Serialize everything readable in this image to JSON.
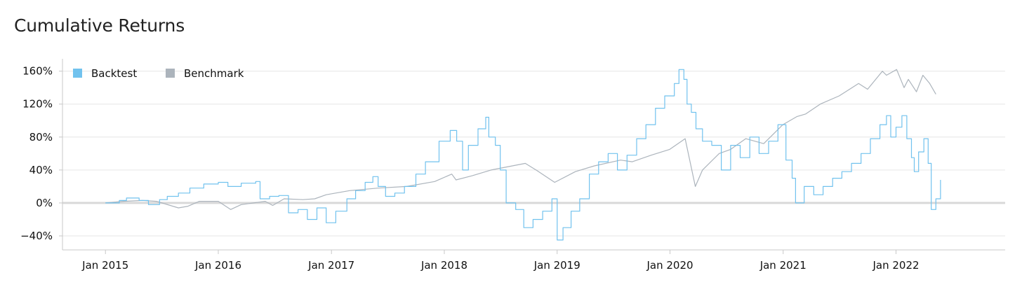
{
  "title": "Cumulative Returns",
  "colors": {
    "backtest": "#71c2ee",
    "benchmark": "#acb4bc",
    "grid": "#e6e6e6",
    "axis": "#c8c8c8",
    "zero": "#d9d9d9"
  },
  "chart_data": {
    "type": "line",
    "title": "Cumulative Returns",
    "xlabel": "",
    "ylabel": "",
    "x_ticks": [
      "Jan 2015",
      "Jan 2016",
      "Jan 2017",
      "Jan 2018",
      "Jan 2019",
      "Jan 2020",
      "Jan 2021",
      "Jan 2022"
    ],
    "y_ticks": [
      "160%",
      "120%",
      "80%",
      "40%",
      "0%",
      "−40%"
    ],
    "y_tick_values": [
      160,
      120,
      80,
      40,
      0,
      -40
    ],
    "xlim": [
      "2014-08-15",
      "2022-12-20"
    ],
    "ylim": [
      -57,
      175
    ],
    "grid": true,
    "legend": "top-left",
    "series": [
      {
        "name": "Backtest",
        "color": "#71c2ee",
        "step": true,
        "points": [
          [
            "2015-01-01",
            0
          ],
          [
            "2015-02-15",
            3
          ],
          [
            "2015-03-10",
            6
          ],
          [
            "2015-04-20",
            3
          ],
          [
            "2015-05-20",
            -2
          ],
          [
            "2015-06-25",
            4
          ],
          [
            "2015-07-20",
            8
          ],
          [
            "2015-08-25",
            12
          ],
          [
            "2015-10-01",
            18
          ],
          [
            "2015-11-15",
            23
          ],
          [
            "2016-01-01",
            25
          ],
          [
            "2016-02-01",
            20
          ],
          [
            "2016-03-15",
            24
          ],
          [
            "2016-05-01",
            26
          ],
          [
            "2016-05-15",
            5
          ],
          [
            "2016-06-15",
            8
          ],
          [
            "2016-07-15",
            9
          ],
          [
            "2016-08-15",
            -12
          ],
          [
            "2016-09-15",
            -8
          ],
          [
            "2016-10-15",
            -20
          ],
          [
            "2016-11-15",
            -6
          ],
          [
            "2016-12-15",
            -24
          ],
          [
            "2017-01-15",
            -10
          ],
          [
            "2017-02-20",
            5
          ],
          [
            "2017-03-20",
            15
          ],
          [
            "2017-04-20",
            25
          ],
          [
            "2017-05-15",
            32
          ],
          [
            "2017-06-01",
            20
          ],
          [
            "2017-06-25",
            8
          ],
          [
            "2017-07-25",
            12
          ],
          [
            "2017-08-25",
            20
          ],
          [
            "2017-10-01",
            35
          ],
          [
            "2017-11-01",
            50
          ],
          [
            "2017-12-15",
            75
          ],
          [
            "2018-01-20",
            88
          ],
          [
            "2018-02-10",
            75
          ],
          [
            "2018-03-01",
            40
          ],
          [
            "2018-03-20",
            70
          ],
          [
            "2018-04-20",
            90
          ],
          [
            "2018-05-15",
            104
          ],
          [
            "2018-05-25",
            80
          ],
          [
            "2018-06-15",
            70
          ],
          [
            "2018-07-01",
            40
          ],
          [
            "2018-07-20",
            0
          ],
          [
            "2018-08-20",
            -8
          ],
          [
            "2018-09-15",
            -30
          ],
          [
            "2018-10-15",
            -20
          ],
          [
            "2018-11-15",
            -10
          ],
          [
            "2018-12-15",
            5
          ],
          [
            "2019-01-01",
            -45
          ],
          [
            "2019-01-20",
            -30
          ],
          [
            "2019-02-15",
            -10
          ],
          [
            "2019-03-15",
            5
          ],
          [
            "2019-04-15",
            35
          ],
          [
            "2019-05-15",
            50
          ],
          [
            "2019-06-15",
            60
          ],
          [
            "2019-07-15",
            40
          ],
          [
            "2019-08-15",
            58
          ],
          [
            "2019-09-15",
            78
          ],
          [
            "2019-10-15",
            95
          ],
          [
            "2019-11-15",
            115
          ],
          [
            "2019-12-15",
            130
          ],
          [
            "2020-01-15",
            145
          ],
          [
            "2020-01-30",
            162
          ],
          [
            "2020-02-15",
            150
          ],
          [
            "2020-02-25",
            120
          ],
          [
            "2020-03-10",
            110
          ],
          [
            "2020-03-25",
            90
          ],
          [
            "2020-04-15",
            75
          ],
          [
            "2020-05-15",
            70
          ],
          [
            "2020-06-15",
            40
          ],
          [
            "2020-07-15",
            70
          ],
          [
            "2020-08-15",
            55
          ],
          [
            "2020-09-15",
            80
          ],
          [
            "2020-10-15",
            60
          ],
          [
            "2020-11-15",
            75
          ],
          [
            "2020-12-15",
            95
          ],
          [
            "2021-01-10",
            52
          ],
          [
            "2021-01-30",
            30
          ],
          [
            "2021-02-10",
            0
          ],
          [
            "2021-03-10",
            20
          ],
          [
            "2021-04-10",
            10
          ],
          [
            "2021-05-10",
            20
          ],
          [
            "2021-06-10",
            30
          ],
          [
            "2021-07-10",
            38
          ],
          [
            "2021-08-10",
            48
          ],
          [
            "2021-09-10",
            60
          ],
          [
            "2021-10-10",
            78
          ],
          [
            "2021-11-10",
            95
          ],
          [
            "2021-12-01",
            106
          ],
          [
            "2021-12-15",
            80
          ],
          [
            "2022-01-01",
            92
          ],
          [
            "2022-01-20",
            106
          ],
          [
            "2022-02-05",
            78
          ],
          [
            "2022-02-20",
            55
          ],
          [
            "2022-03-01",
            38
          ],
          [
            "2022-03-15",
            62
          ],
          [
            "2022-04-01",
            78
          ],
          [
            "2022-04-15",
            48
          ],
          [
            "2022-04-25",
            -8
          ],
          [
            "2022-05-10",
            5
          ],
          [
            "2022-05-25",
            28
          ]
        ]
      },
      {
        "name": "Benchmark",
        "color": "#acb4bc",
        "step": false,
        "points": [
          [
            "2015-01-01",
            0
          ],
          [
            "2015-03-01",
            2
          ],
          [
            "2015-05-01",
            3
          ],
          [
            "2015-06-15",
            2
          ],
          [
            "2015-08-25",
            -6
          ],
          [
            "2015-09-25",
            -4
          ],
          [
            "2015-11-01",
            2
          ],
          [
            "2016-01-01",
            2
          ],
          [
            "2016-02-10",
            -8
          ],
          [
            "2016-03-15",
            -2
          ],
          [
            "2016-06-01",
            2
          ],
          [
            "2016-06-25",
            -3
          ],
          [
            "2016-08-01",
            5
          ],
          [
            "2016-10-01",
            4
          ],
          [
            "2016-11-08",
            5
          ],
          [
            "2016-12-15",
            10
          ],
          [
            "2017-03-01",
            15
          ],
          [
            "2017-06-01",
            18
          ],
          [
            "2017-09-01",
            20
          ],
          [
            "2017-12-01",
            26
          ],
          [
            "2018-01-25",
            35
          ],
          [
            "2018-02-08",
            28
          ],
          [
            "2018-04-01",
            33
          ],
          [
            "2018-06-01",
            40
          ],
          [
            "2018-09-20",
            48
          ],
          [
            "2018-10-25",
            40
          ],
          [
            "2018-12-24",
            25
          ],
          [
            "2019-03-01",
            38
          ],
          [
            "2019-05-01",
            45
          ],
          [
            "2019-07-25",
            52
          ],
          [
            "2019-09-01",
            50
          ],
          [
            "2019-11-01",
            58
          ],
          [
            "2019-12-31",
            65
          ],
          [
            "2020-02-19",
            78
          ],
          [
            "2020-03-23",
            20
          ],
          [
            "2020-04-15",
            40
          ],
          [
            "2020-06-08",
            60
          ],
          [
            "2020-07-15",
            65
          ],
          [
            "2020-09-02",
            78
          ],
          [
            "2020-10-30",
            72
          ],
          [
            "2020-12-31",
            95
          ],
          [
            "2021-02-15",
            105
          ],
          [
            "2021-03-15",
            108
          ],
          [
            "2021-05-01",
            120
          ],
          [
            "2021-07-01",
            130
          ],
          [
            "2021-09-02",
            145
          ],
          [
            "2021-10-01",
            138
          ],
          [
            "2021-11-18",
            160
          ],
          [
            "2021-12-01",
            155
          ],
          [
            "2022-01-03",
            162
          ],
          [
            "2022-01-27",
            140
          ],
          [
            "2022-02-10",
            150
          ],
          [
            "2022-03-08",
            135
          ],
          [
            "2022-03-29",
            155
          ],
          [
            "2022-04-20",
            145
          ],
          [
            "2022-05-10",
            132
          ]
        ]
      }
    ]
  }
}
